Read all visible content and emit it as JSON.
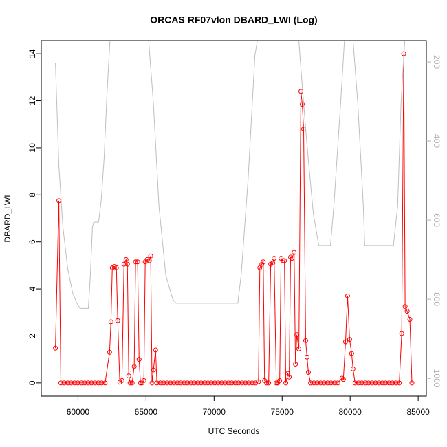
{
  "chart_data": {
    "type": "line",
    "title": "ORCAS RF07vlon DBARD_LWI (Log)",
    "x_label": "UTC Seconds",
    "y_label": "DBARD_LWI",
    "xlim": [
      57300,
      85600
    ],
    "xticks": [
      60000,
      65000,
      70000,
      75000,
      80000,
      85000
    ],
    "ylim": [
      -0.56,
      14.56
    ],
    "yticks": [
      0,
      2,
      4,
      6,
      8,
      10,
      12,
      14
    ],
    "y2lim": [
      1045,
      146
    ],
    "y2ticks": [
      200,
      400,
      600,
      800,
      1000
    ],
    "y2tick_color": "#b0b0b0",
    "grid": false,
    "series": [
      {
        "color": "#ff0000",
        "markers": true,
        "x": [
          58340,
          58590,
          58740,
          58990,
          59240,
          59490,
          59740,
          59990,
          60240,
          60490,
          60740,
          60990,
          61240,
          61490,
          61740,
          61990,
          62320,
          62420,
          62520,
          62670,
          62820,
          62920,
          63070,
          63230,
          63380,
          63530,
          63630,
          63730,
          63830,
          63980,
          64130,
          64230,
          64380,
          64490,
          64590,
          64690,
          64840,
          64940,
          65090,
          65240,
          65340,
          65440,
          65540,
          65700,
          65800,
          66050,
          66300,
          66550,
          66800,
          67050,
          67300,
          67550,
          67800,
          68050,
          68300,
          68550,
          68800,
          69050,
          69300,
          69550,
          69800,
          70050,
          70300,
          70550,
          70800,
          71050,
          71300,
          71550,
          71800,
          72050,
          72300,
          72550,
          72800,
          73050,
          73260,
          73360,
          73510,
          73610,
          73710,
          73860,
          74010,
          74160,
          74310,
          74410,
          74570,
          74670,
          74820,
          74920,
          75070,
          75170,
          75270,
          75420,
          75520,
          75620,
          75720,
          75880,
          75980,
          76080,
          76230,
          76380,
          76480,
          76580,
          76730,
          76830,
          76930,
          77090,
          77340,
          77590,
          77840,
          78090,
          78340,
          78590,
          78840,
          79090,
          79400,
          79500,
          79660,
          79810,
          79960,
          80110,
          80210,
          80360,
          80610,
          80860,
          81110,
          81360,
          81610,
          81860,
          82110,
          82360,
          82610,
          82860,
          83110,
          83360,
          83610,
          83790,
          83940,
          84040,
          84190,
          84390,
          84540
        ],
        "values": [
          1.48,
          7.75,
          0,
          0,
          0,
          0,
          0,
          0,
          0,
          0,
          0,
          0,
          0,
          0,
          0,
          0,
          1.3,
          2.6,
          4.9,
          4.95,
          4.9,
          2.65,
          0.03,
          0.1,
          5.05,
          5.25,
          5.05,
          0.3,
          0,
          0,
          0.7,
          5.15,
          5.15,
          1.0,
          0,
          0,
          0.1,
          5.15,
          5.25,
          5.2,
          5.4,
          0,
          0.55,
          1.4,
          0,
          0,
          0,
          0,
          0,
          0,
          0,
          0,
          0,
          0,
          0,
          0,
          0,
          0,
          0,
          0,
          0,
          0,
          0,
          0,
          0,
          0,
          0,
          0,
          0,
          0,
          0,
          0,
          0,
          0,
          0.05,
          4.9,
          5.05,
          5.15,
          0.1,
          0,
          0,
          5.05,
          5.1,
          5.3,
          0,
          0,
          0.1,
          5.3,
          5.2,
          5.2,
          0,
          0.4,
          0.25,
          5.35,
          5.3,
          5.55,
          0.8,
          2.05,
          1.45,
          12.4,
          11.85,
          10.8,
          1.8,
          1.1,
          0.45,
          0,
          0,
          0,
          0,
          0,
          0,
          0,
          0,
          0,
          0.2,
          0.15,
          1.75,
          3.7,
          1.85,
          1.25,
          0.6,
          0,
          0,
          0,
          0,
          0,
          0,
          0,
          0,
          0,
          0,
          0,
          0,
          0,
          0,
          2.1,
          14,
          3.25,
          3.05,
          2.7,
          0
        ]
      },
      {
        "color": "#bebebe",
        "markers": false,
        "axis": "y2",
        "x": [
          58340,
          58590,
          58890,
          59240,
          59600,
          59900,
          60150,
          60760,
          60910,
          61060,
          61160,
          61510,
          61710,
          61920,
          62120,
          62420,
          65090,
          65540,
          65950,
          66450,
          66960,
          67210,
          71740,
          71990,
          72500,
          73000,
          73410,
          76130,
          76380,
          76780,
          77290,
          77690,
          78550,
          78800,
          79300,
          79660,
          80110,
          80560,
          80970,
          81070,
          83180,
          83490,
          83740,
          84090,
          84490
        ],
        "values": [
          203,
          461,
          617,
          722,
          783,
          809,
          823,
          823,
          739,
          617,
          605,
          605,
          548,
          443,
          287,
          100,
          100,
          304,
          565,
          739,
          800,
          810,
          810,
          739,
          496,
          183,
          100,
          100,
          217,
          391,
          583,
          664,
          664,
          565,
          304,
          100,
          100,
          304,
          565,
          664,
          664,
          565,
          304,
          100,
          100
        ]
      }
    ]
  }
}
